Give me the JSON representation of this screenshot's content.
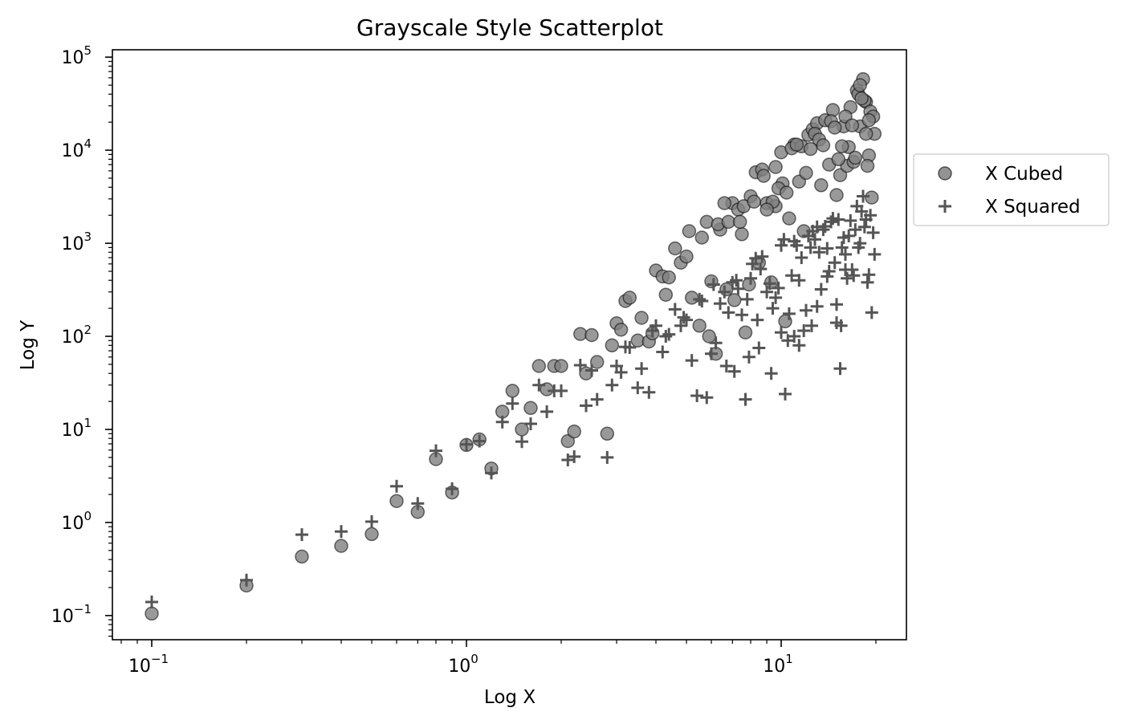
{
  "chart_data": {
    "type": "scatter",
    "title": "Grayscale Style Scatterplot",
    "xlabel": "Log X",
    "ylabel": "Log Y",
    "xscale": "log",
    "yscale": "log",
    "xlim": [
      0.075,
      25
    ],
    "ylim": [
      0.055,
      120000
    ],
    "grid": false,
    "legend_position": "outside-right",
    "xticks": [
      {
        "value": 0.1,
        "base": "10",
        "exp": "−1"
      },
      {
        "value": 1,
        "base": "10",
        "exp": "0"
      },
      {
        "value": 10,
        "base": "10",
        "exp": "1"
      }
    ],
    "yticks": [
      {
        "value": 0.1,
        "base": "10",
        "exp": "−1"
      },
      {
        "value": 1,
        "base": "10",
        "exp": "0"
      },
      {
        "value": 10,
        "base": "10",
        "exp": "1"
      },
      {
        "value": 100,
        "base": "10",
        "exp": "2"
      },
      {
        "value": 1000,
        "base": "10",
        "exp": "3"
      },
      {
        "value": 10000,
        "base": "10",
        "exp": "4"
      },
      {
        "value": 100000,
        "base": "10",
        "exp": "5"
      }
    ],
    "series": [
      {
        "name": "X Cubed",
        "marker": "circle",
        "color": "#808080",
        "edge_color": "#000000",
        "points": [
          [
            0.1,
            0.105
          ],
          [
            0.2,
            0.21
          ],
          [
            0.3,
            0.43
          ],
          [
            0.4,
            0.56
          ],
          [
            0.5,
            0.75
          ],
          [
            0.6,
            1.7
          ],
          [
            0.7,
            1.3
          ],
          [
            0.8,
            4.8
          ],
          [
            0.9,
            2.1
          ],
          [
            1.0,
            6.8
          ],
          [
            1.1,
            7.8
          ],
          [
            1.2,
            3.8
          ],
          [
            1.3,
            15.5
          ],
          [
            1.4,
            26
          ],
          [
            1.5,
            10
          ],
          [
            1.6,
            17
          ],
          [
            1.7,
            48
          ],
          [
            1.8,
            27
          ],
          [
            1.9,
            48
          ],
          [
            2.0,
            48
          ],
          [
            2.1,
            7.5
          ],
          [
            2.2,
            9.5
          ],
          [
            2.3,
            106
          ],
          [
            2.4,
            40
          ],
          [
            2.5,
            103
          ],
          [
            2.6,
            53
          ],
          [
            2.8,
            9.0
          ],
          [
            2.9,
            80
          ],
          [
            3.0,
            138
          ],
          [
            3.1,
            118
          ],
          [
            3.2,
            240
          ],
          [
            3.3,
            260
          ],
          [
            3.5,
            90
          ],
          [
            3.6,
            158
          ],
          [
            3.8,
            88
          ],
          [
            3.9,
            108
          ],
          [
            4.0,
            510
          ],
          [
            4.2,
            440
          ],
          [
            4.3,
            280
          ],
          [
            4.4,
            430
          ],
          [
            4.6,
            880
          ],
          [
            4.8,
            620
          ],
          [
            5.0,
            720
          ],
          [
            5.2,
            260
          ],
          [
            5.5,
            130
          ],
          [
            5.8,
            1700
          ],
          [
            5.9,
            100
          ],
          [
            6.0,
            390
          ],
          [
            6.2,
            65
          ],
          [
            6.4,
            1400
          ],
          [
            6.7,
            320
          ],
          [
            7.0,
            2700
          ],
          [
            7.1,
            245
          ],
          [
            7.3,
            2300
          ],
          [
            7.5,
            1250
          ],
          [
            7.7,
            110
          ],
          [
            7.9,
            360
          ],
          [
            8.0,
            3200
          ],
          [
            8.3,
            5800
          ],
          [
            8.5,
            620
          ],
          [
            8.7,
            6200
          ],
          [
            9.0,
            2700
          ],
          [
            9.3,
            380
          ],
          [
            9.6,
            2500
          ],
          [
            10.0,
            9500
          ],
          [
            10.3,
            145
          ],
          [
            10.6,
            1850
          ],
          [
            11.0,
            11500
          ],
          [
            11.4,
            4600
          ],
          [
            11.8,
            1350
          ],
          [
            12.2,
            14600
          ],
          [
            12.6,
            16800
          ],
          [
            13.0,
            19500
          ],
          [
            13.4,
            4200
          ],
          [
            13.8,
            21000
          ],
          [
            14.2,
            7000
          ],
          [
            14.6,
            27000
          ],
          [
            15.0,
            3300
          ],
          [
            15.4,
            5400
          ],
          [
            15.8,
            18000
          ],
          [
            16.2,
            6800
          ],
          [
            16.6,
            29000
          ],
          [
            17.0,
            7500
          ],
          [
            17.4,
            44000
          ],
          [
            17.8,
            18000
          ],
          [
            18.2,
            58000
          ],
          [
            18.6,
            33000
          ],
          [
            19.0,
            8800
          ],
          [
            19.4,
            3100
          ],
          [
            19.8,
            15000
          ],
          [
            5.1,
            1350
          ],
          [
            5.6,
            1150
          ],
          [
            6.3,
            1600
          ],
          [
            6.8,
            1700
          ],
          [
            7.6,
            2500
          ],
          [
            8.8,
            5300
          ],
          [
            9.4,
            2800
          ],
          [
            10.8,
            10500
          ],
          [
            11.6,
            11000
          ],
          [
            12.0,
            5700
          ],
          [
            12.8,
            15000
          ],
          [
            13.2,
            13000
          ],
          [
            14.4,
            20500
          ],
          [
            15.2,
            8000
          ],
          [
            16.0,
            23000
          ],
          [
            16.4,
            10800
          ],
          [
            17.2,
            8300
          ],
          [
            17.6,
            40000
          ],
          [
            18.4,
            34000
          ],
          [
            18.8,
            6800
          ],
          [
            19.2,
            26000
          ],
          [
            19.6,
            23000
          ],
          [
            10.1,
            4400
          ],
          [
            11.2,
            11500
          ],
          [
            12.4,
            10300
          ],
          [
            13.6,
            11300
          ],
          [
            14.8,
            17500
          ],
          [
            15.6,
            11000
          ],
          [
            16.8,
            18500
          ],
          [
            17.8,
            50000
          ],
          [
            18.0,
            36000
          ],
          [
            18.6,
            15000
          ],
          [
            19.0,
            21000
          ],
          [
            9.8,
            3900
          ],
          [
            10.4,
            3500
          ],
          [
            7.4,
            1700
          ],
          [
            6.6,
            2700
          ],
          [
            8.2,
            2800
          ],
          [
            9.0,
            2300
          ],
          [
            9.6,
            6600
          ]
        ]
      },
      {
        "name": "X Squared",
        "marker": "plus",
        "color": "#555555",
        "points": [
          [
            0.1,
            0.14
          ],
          [
            0.2,
            0.24
          ],
          [
            0.3,
            0.74
          ],
          [
            0.4,
            0.8
          ],
          [
            0.5,
            1.02
          ],
          [
            0.6,
            2.45
          ],
          [
            0.7,
            1.6
          ],
          [
            0.8,
            5.9
          ],
          [
            0.9,
            2.3
          ],
          [
            1.0,
            6.9
          ],
          [
            1.1,
            7.5
          ],
          [
            1.2,
            3.4
          ],
          [
            1.3,
            12
          ],
          [
            1.4,
            19
          ],
          [
            1.5,
            7.4
          ],
          [
            1.6,
            11.5
          ],
          [
            1.7,
            30
          ],
          [
            1.8,
            15.5
          ],
          [
            1.9,
            26
          ],
          [
            2.0,
            26
          ],
          [
            2.1,
            4.7
          ],
          [
            2.2,
            5.1
          ],
          [
            2.3,
            49
          ],
          [
            2.4,
            18
          ],
          [
            2.5,
            43
          ],
          [
            2.6,
            21
          ],
          [
            2.8,
            5.0
          ],
          [
            2.9,
            30
          ],
          [
            3.0,
            48
          ],
          [
            3.1,
            41
          ],
          [
            3.2,
            77
          ],
          [
            3.3,
            76
          ],
          [
            3.5,
            28
          ],
          [
            3.6,
            45
          ],
          [
            3.8,
            25
          ],
          [
            3.9,
            115
          ],
          [
            4.0,
            130
          ],
          [
            4.2,
            68
          ],
          [
            4.4,
            105
          ],
          [
            4.6,
            195
          ],
          [
            4.8,
            130
          ],
          [
            5.0,
            150
          ],
          [
            5.2,
            55
          ],
          [
            5.4,
            23
          ],
          [
            5.6,
            240
          ],
          [
            5.8,
            22
          ],
          [
            6.0,
            65
          ],
          [
            6.2,
            85
          ],
          [
            6.4,
            225
          ],
          [
            6.7,
            48
          ],
          [
            7.0,
            380
          ],
          [
            7.1,
            42
          ],
          [
            7.3,
            325
          ],
          [
            7.5,
            170
          ],
          [
            7.7,
            21
          ],
          [
            7.9,
            60
          ],
          [
            8.0,
            420
          ],
          [
            8.3,
            690
          ],
          [
            8.5,
            75
          ],
          [
            8.7,
            720
          ],
          [
            9.0,
            300
          ],
          [
            9.3,
            40
          ],
          [
            9.6,
            260
          ],
          [
            10.0,
            950
          ],
          [
            10.3,
            24
          ],
          [
            10.6,
            175
          ],
          [
            11.0,
            1050
          ],
          [
            11.4,
            400
          ],
          [
            11.8,
            115
          ],
          [
            12.2,
            1200
          ],
          [
            12.6,
            1350
          ],
          [
            13.0,
            1500
          ],
          [
            13.4,
            320
          ],
          [
            13.8,
            1520
          ],
          [
            14.2,
            500
          ],
          [
            14.6,
            1850
          ],
          [
            15.0,
            220
          ],
          [
            15.4,
            45
          ],
          [
            15.8,
            1150
          ],
          [
            16.2,
            420
          ],
          [
            16.6,
            1750
          ],
          [
            17.0,
            450
          ],
          [
            17.4,
            2500
          ],
          [
            17.8,
            1000
          ],
          [
            18.2,
            3200
          ],
          [
            18.6,
            1800
          ],
          [
            19.0,
            460
          ],
          [
            19.4,
            180
          ],
          [
            19.8,
            760
          ],
          [
            4.3,
            100
          ],
          [
            4.9,
            160
          ],
          [
            5.5,
            250
          ],
          [
            6.1,
            360
          ],
          [
            6.6,
            300
          ],
          [
            7.2,
            400
          ],
          [
            7.8,
            250
          ],
          [
            8.1,
            600
          ],
          [
            8.6,
            530
          ],
          [
            9.2,
            370
          ],
          [
            9.8,
            330
          ],
          [
            10.2,
            1100
          ],
          [
            10.8,
            450
          ],
          [
            11.2,
            950
          ],
          [
            11.6,
            700
          ],
          [
            12.4,
            900
          ],
          [
            12.8,
            1100
          ],
          [
            13.2,
            800
          ],
          [
            13.6,
            1400
          ],
          [
            14.0,
            880
          ],
          [
            14.4,
            1700
          ],
          [
            14.8,
            620
          ],
          [
            15.2,
            1800
          ],
          [
            15.6,
            900
          ],
          [
            16.0,
            760
          ],
          [
            16.4,
            1200
          ],
          [
            16.8,
            520
          ],
          [
            17.2,
            1400
          ],
          [
            17.6,
            900
          ],
          [
            18.0,
            2200
          ],
          [
            18.4,
            1500
          ],
          [
            18.8,
            380
          ],
          [
            19.2,
            2000
          ],
          [
            19.6,
            1300
          ],
          [
            10.5,
            90
          ],
          [
            11.4,
            80
          ],
          [
            12.0,
            190
          ],
          [
            13.0,
            210
          ],
          [
            15.0,
            140
          ],
          [
            16.0,
            520
          ],
          [
            6.8,
            180
          ],
          [
            8.4,
            150
          ],
          [
            9.4,
            200
          ],
          [
            10.0,
            110
          ],
          [
            11.0,
            100
          ],
          [
            12.5,
            130
          ],
          [
            14.0,
            440
          ],
          [
            15.5,
            130
          ]
        ]
      }
    ]
  }
}
